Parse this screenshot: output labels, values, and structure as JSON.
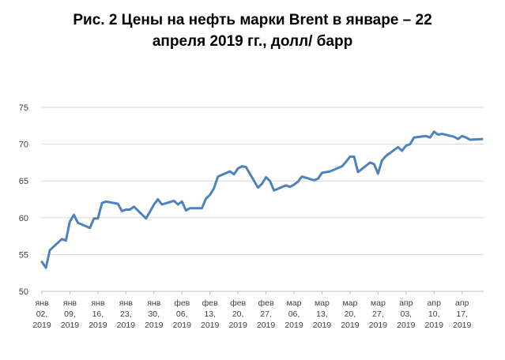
{
  "chart_data": {
    "type": "line",
    "title_line1": "Рис. 2 Цены на нефть марки Brent в январе – 22",
    "title_line2": "апреля 2019 гг., долл/ барр",
    "ylim": [
      50,
      75
    ],
    "yticks": [
      "50",
      "55",
      "60",
      "65",
      "70",
      "75"
    ],
    "grid": true,
    "legend": "none",
    "series_color": "#4f81bd",
    "x_labels": [
      [
        "янв",
        "02,",
        "2019"
      ],
      [
        "янв",
        "09,",
        "2019"
      ],
      [
        "янв",
        "16,",
        "2019"
      ],
      [
        "янв",
        "23,",
        "2019"
      ],
      [
        "янв",
        "30,",
        "2019"
      ],
      [
        "фев",
        "06,",
        "2019"
      ],
      [
        "фев",
        "13,",
        "2019"
      ],
      [
        "фев",
        "20,",
        "2019"
      ],
      [
        "фев",
        "27,",
        "2019"
      ],
      [
        "мар",
        "06,",
        "2019"
      ],
      [
        "мар",
        "13,",
        "2019"
      ],
      [
        "мар",
        "20,",
        "2019"
      ],
      [
        "мар",
        "27,",
        "2019"
      ],
      [
        "апр",
        "03,",
        "2019"
      ],
      [
        "апр",
        "10,",
        "2019"
      ],
      [
        "апр",
        "17,",
        "2019"
      ]
    ],
    "series": [
      {
        "x": [
          "2019-01-02",
          "2019-01-03",
          "2019-01-04",
          "2019-01-07",
          "2019-01-08",
          "2019-01-09",
          "2019-01-10",
          "2019-01-11",
          "2019-01-14",
          "2019-01-15",
          "2019-01-16",
          "2019-01-17",
          "2019-01-18",
          "2019-01-21",
          "2019-01-22",
          "2019-01-23",
          "2019-01-24",
          "2019-01-25",
          "2019-01-28",
          "2019-01-29",
          "2019-01-30",
          "2019-01-31",
          "2019-02-01",
          "2019-02-04",
          "2019-02-05",
          "2019-02-06",
          "2019-02-07",
          "2019-02-08",
          "2019-02-11",
          "2019-02-12",
          "2019-02-13",
          "2019-02-14",
          "2019-02-15",
          "2019-02-18",
          "2019-02-19",
          "2019-02-20",
          "2019-02-21",
          "2019-02-22",
          "2019-02-25",
          "2019-02-26",
          "2019-02-27",
          "2019-02-28",
          "2019-03-01",
          "2019-03-04",
          "2019-03-05",
          "2019-03-06",
          "2019-03-07",
          "2019-03-08",
          "2019-03-11",
          "2019-03-12",
          "2019-03-13",
          "2019-03-14",
          "2019-03-15",
          "2019-03-18",
          "2019-03-19",
          "2019-03-20",
          "2019-03-21",
          "2019-03-22",
          "2019-03-25",
          "2019-03-26",
          "2019-03-27",
          "2019-03-28",
          "2019-03-29",
          "2019-04-01",
          "2019-04-02",
          "2019-04-03",
          "2019-04-04",
          "2019-04-05",
          "2019-04-08",
          "2019-04-09",
          "2019-04-10",
          "2019-04-11",
          "2019-04-12",
          "2019-04-15",
          "2019-04-16",
          "2019-04-17",
          "2019-04-18",
          "2019-04-19",
          "2019-04-22"
        ],
        "values": [
          54.0,
          53.2,
          55.6,
          57.1,
          56.9,
          59.5,
          60.4,
          59.3,
          58.6,
          59.9,
          59.9,
          62.0,
          62.2,
          61.9,
          60.9,
          61.1,
          61.1,
          61.5,
          59.9,
          60.8,
          61.8,
          62.5,
          61.8,
          62.3,
          61.8,
          62.2,
          61.0,
          61.3,
          61.3,
          62.6,
          63.1,
          64.0,
          65.6,
          66.3,
          65.9,
          66.7,
          67.0,
          66.9,
          64.1,
          64.6,
          65.5,
          65.0,
          63.7,
          64.4,
          64.2,
          64.5,
          64.9,
          65.6,
          65.1,
          65.3,
          66.1,
          66.2,
          66.3,
          67.0,
          67.6,
          68.3,
          68.3,
          66.2,
          67.5,
          67.3,
          66.0,
          67.8,
          68.4,
          69.6,
          69.1,
          69.8,
          70.0,
          70.9,
          71.1,
          70.9,
          71.7,
          71.3,
          71.4,
          71.0,
          70.7,
          71.1,
          70.9,
          70.6,
          70.7
        ]
      }
    ]
  }
}
